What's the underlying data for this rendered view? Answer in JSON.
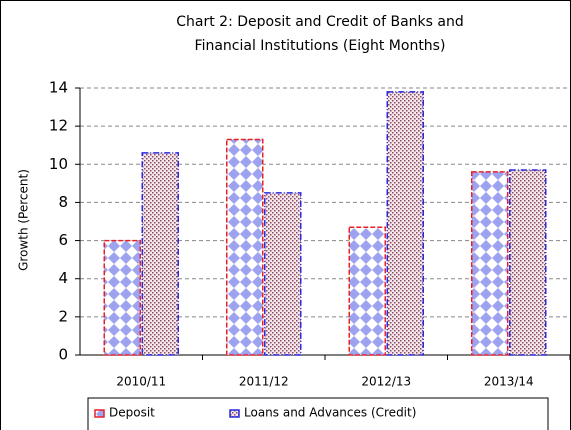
{
  "chart_data": {
    "type": "bar",
    "title": [
      "Chart 2: Deposit and Credit of Banks and",
      "Financial Institutions (Eight Months)"
    ],
    "y_label": "Growth (Percent)",
    "categories": [
      "2010/11",
      "2011/12",
      "2012/13",
      "2013/14"
    ],
    "series": [
      {
        "name": "Deposit",
        "color": "#e8202a",
        "values": [
          6.0,
          11.3,
          6.7,
          9.6
        ]
      },
      {
        "name": "Loans and Advances (Credit)",
        "color": "#2a2ae0",
        "values": [
          10.6,
          8.5,
          13.8,
          9.7
        ]
      }
    ],
    "ylim": [
      0,
      14
    ],
    "yticks": [
      0,
      2,
      4,
      6,
      8,
      10,
      12,
      14
    ],
    "grid": true,
    "legend": "bottom"
  }
}
